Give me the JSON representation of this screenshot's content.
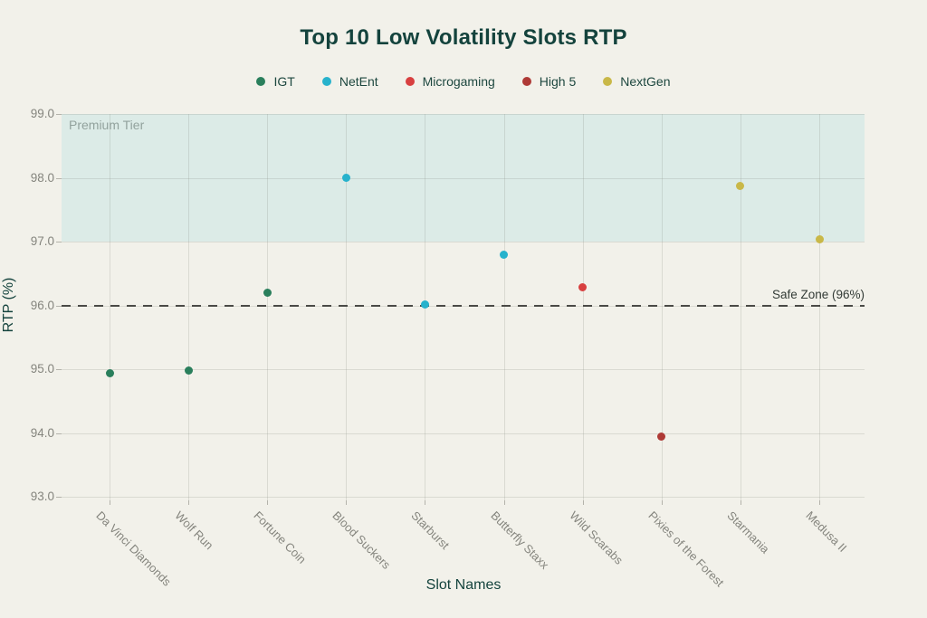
{
  "chart_data": {
    "type": "scatter",
    "title": "Top 10 Low Volatility Slots RTP",
    "xlabel": "Slot Names",
    "ylabel": "RTP (%)",
    "ylim": [
      93.0,
      99.0
    ],
    "yticks": [
      99.0,
      98.0,
      97.0,
      96.0,
      95.0,
      94.0,
      93.0
    ],
    "grid": true,
    "legend_position": "top",
    "categories": [
      "Da Vinci Diamonds",
      "Wolf Run",
      "Fortune Coin",
      "Blood Suckers",
      "Starburst",
      "Butterfly Staxx",
      "Wild Scarabs",
      "Pixies of the Forest",
      "Starmania",
      "Medusa II"
    ],
    "series": [
      {
        "name": "IGT",
        "color": "#2a7f5c",
        "points": [
          {
            "category": "Da Vinci Diamonds",
            "value": 94.94
          },
          {
            "category": "Wolf Run",
            "value": 94.98
          },
          {
            "category": "Fortune Coin",
            "value": 96.2
          }
        ]
      },
      {
        "name": "NetEnt",
        "color": "#27b2cc",
        "points": [
          {
            "category": "Blood Suckers",
            "value": 98.0
          },
          {
            "category": "Starburst",
            "value": 96.01
          },
          {
            "category": "Butterfly Staxx",
            "value": 96.8
          }
        ]
      },
      {
        "name": "Microgaming",
        "color": "#d84040",
        "points": [
          {
            "category": "Wild Scarabs",
            "value": 96.28
          }
        ]
      },
      {
        "name": "High 5",
        "color": "#ae3a36",
        "points": [
          {
            "category": "Pixies of the Forest",
            "value": 93.95
          }
        ]
      },
      {
        "name": "NextGen",
        "color": "#c9b848",
        "points": [
          {
            "category": "Starmania",
            "value": 97.87
          },
          {
            "category": "Medusa II",
            "value": 97.03
          }
        ]
      }
    ],
    "annotations": {
      "premium_band": {
        "label": "Premium Tier",
        "from": 97.0,
        "to": 99.0,
        "color": "#dcebe7"
      },
      "safe_line": {
        "label": "Safe Zone (96%)",
        "value": 96.0,
        "color": "#4a4a46"
      }
    }
  },
  "colors": {
    "background": "#f2f1ea",
    "title_text": "#14433d",
    "tick_text": "#85857e",
    "band_label_text": "#92a29d"
  }
}
